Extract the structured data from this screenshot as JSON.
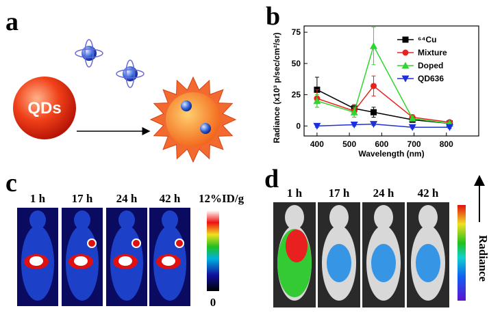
{
  "panel_a": {
    "label": "a",
    "particle": "QDs"
  },
  "chart_data": {
    "type": "line",
    "panel_label": "b",
    "x_label": "Wavelength (nm)",
    "y_label": "Radiance (x10³ p/sec/cm²/sr)",
    "x": [
      400,
      515,
      575,
      695,
      810
    ],
    "xlim": [
      360,
      900
    ],
    "xticks": [
      400,
      500,
      600,
      700,
      800
    ],
    "ylim": [
      -8,
      80
    ],
    "yticks": [
      0,
      25,
      50,
      75
    ],
    "legend": "upper right",
    "series": [
      {
        "name": "⁶⁴Cu",
        "color": "#000000",
        "marker": "square",
        "values": [
          29,
          14,
          11,
          5,
          2
        ],
        "errors": [
          10,
          3,
          4,
          2,
          1
        ]
      },
      {
        "name": "Mixture",
        "color": "#e8221d",
        "marker": "circle",
        "values": [
          22,
          12,
          32,
          7,
          3
        ],
        "errors": [
          7,
          5,
          8,
          2,
          1
        ]
      },
      {
        "name": "Doped",
        "color": "#2fd62f",
        "marker": "triangle-up",
        "values": [
          20,
          11,
          64,
          6,
          2
        ],
        "errors": [
          5,
          4,
          15,
          2,
          1
        ]
      },
      {
        "name": "QD636",
        "color": "#1d2fd8",
        "marker": "triangle-down",
        "values": [
          0,
          1,
          1.5,
          -1,
          -1
        ],
        "errors": [
          1,
          1,
          1,
          1,
          1
        ]
      }
    ]
  },
  "panel_c": {
    "label": "c",
    "times": [
      "1 h",
      "17 h",
      "24 h",
      "42 h"
    ],
    "scale_max": "12%ID/g",
    "scale_min": "0"
  },
  "panel_d": {
    "label": "d",
    "times": [
      "1 h",
      "17 h",
      "24 h",
      "42 h"
    ],
    "scale_label": "Radiance"
  }
}
